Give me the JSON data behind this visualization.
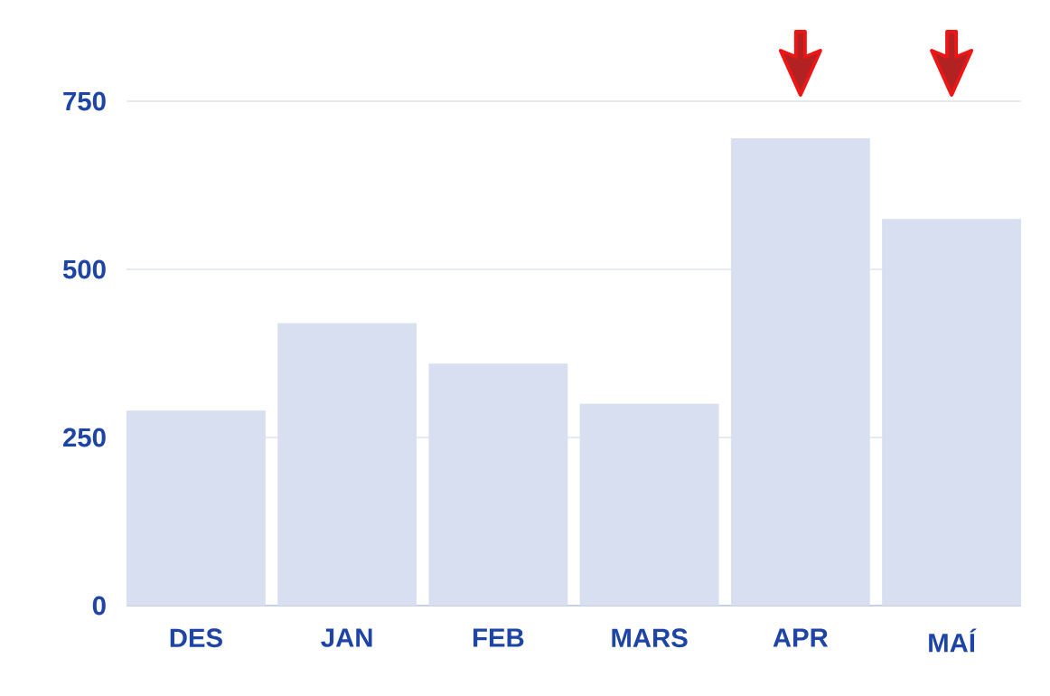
{
  "chart_data": {
    "type": "bar",
    "categories": [
      "DES",
      "JAN",
      "FEB",
      "MARS",
      "APR",
      "MAÍ"
    ],
    "values": [
      290,
      420,
      360,
      300,
      695,
      575
    ],
    "color": "#d8dff0",
    "ylim": [
      0,
      750
    ],
    "yticks": [
      0,
      250,
      500,
      750
    ],
    "grid": "y"
  }
}
